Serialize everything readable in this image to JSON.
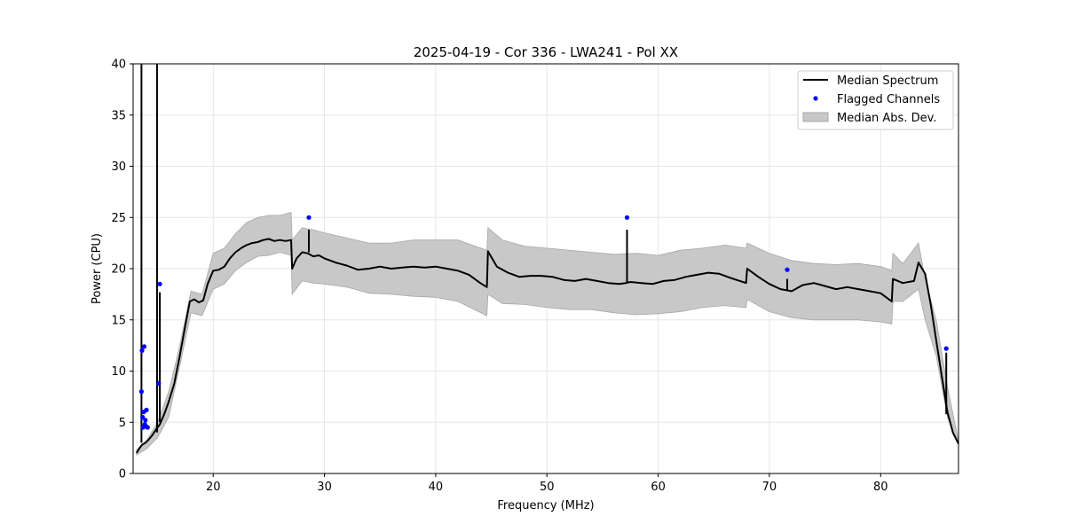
{
  "chart_data": {
    "type": "line",
    "title": "2025-04-19 - Cor 336 - LWA241 - Pol XX",
    "xlabel": "Frequency (MHz)",
    "ylabel": "Power (CPU)",
    "xlim": [
      12.8,
      87.0
    ],
    "ylim": [
      0,
      40
    ],
    "xticks": [
      20,
      30,
      40,
      50,
      60,
      70,
      80
    ],
    "yticks": [
      0,
      5,
      10,
      15,
      20,
      25,
      30,
      35,
      40
    ],
    "grid": true,
    "legend_position": "top-right",
    "legend": [
      {
        "label": "Median Spectrum",
        "kind": "line",
        "color": "#000000"
      },
      {
        "label": "Flagged Channels",
        "kind": "marker",
        "color": "#0000ff"
      },
      {
        "label": "Median Abs. Dev.",
        "kind": "band",
        "color": "#c8c8c8"
      }
    ],
    "series": [
      {
        "name": "Median Spectrum",
        "color": "#000000",
        "x": [
          13.1,
          13.4,
          13.6,
          13.9,
          14.2,
          14.5,
          14.8,
          15.2,
          15.6,
          16.0,
          16.5,
          17.0,
          17.5,
          17.9,
          18.3,
          18.7,
          19.1,
          19.5,
          20.0,
          20.5,
          21.0,
          21.5,
          22.0,
          22.5,
          23.0,
          23.5,
          24.0,
          24.5,
          25.0,
          25.5,
          26.0,
          26.5,
          27.0,
          27.1,
          27.5,
          28.0,
          28.5,
          29.0,
          29.5,
          30.0,
          31.0,
          32.0,
          33.0,
          34.0,
          35.0,
          36.0,
          37.0,
          38.0,
          39.0,
          40.0,
          41.0,
          42.0,
          43.0,
          44.0,
          44.6,
          44.7,
          45.5,
          46.5,
          47.5,
          48.5,
          49.5,
          50.5,
          51.5,
          52.5,
          53.5,
          54.5,
          55.5,
          56.5,
          57.1,
          57.5,
          58.5,
          59.5,
          60.5,
          61.5,
          62.5,
          63.5,
          64.5,
          65.5,
          66.5,
          67.9,
          68.0,
          69.0,
          70.0,
          71.0,
          72.0,
          73.0,
          74.0,
          75.0,
          76.0,
          77.0,
          78.0,
          79.0,
          80.0,
          81.0,
          81.1,
          82.0,
          83.0,
          83.4,
          84.0,
          84.5,
          85.0,
          85.5,
          86.0,
          86.5,
          87.0
        ],
        "values": [
          2.0,
          2.5,
          2.8,
          3.0,
          3.3,
          3.7,
          4.2,
          4.8,
          5.8,
          7.0,
          8.8,
          11.5,
          14.5,
          16.8,
          17.0,
          16.7,
          16.9,
          18.5,
          19.8,
          19.9,
          20.2,
          21.0,
          21.6,
          22.0,
          22.3,
          22.5,
          22.6,
          22.8,
          22.9,
          22.7,
          22.8,
          22.7,
          22.8,
          20.0,
          21.0,
          21.6,
          21.5,
          21.2,
          21.3,
          21.0,
          20.6,
          20.3,
          19.9,
          20.0,
          20.2,
          20.0,
          20.1,
          20.2,
          20.1,
          20.2,
          20.0,
          19.8,
          19.4,
          18.6,
          18.2,
          21.7,
          20.2,
          19.6,
          19.2,
          19.3,
          19.3,
          19.2,
          18.9,
          18.8,
          19.0,
          18.8,
          18.6,
          18.5,
          18.6,
          18.7,
          18.6,
          18.5,
          18.8,
          18.9,
          19.2,
          19.4,
          19.6,
          19.5,
          19.1,
          18.6,
          20.0,
          19.2,
          18.5,
          18.0,
          17.8,
          18.4,
          18.6,
          18.3,
          18.0,
          18.2,
          18.0,
          17.8,
          17.6,
          16.8,
          19.0,
          18.6,
          18.8,
          20.6,
          19.5,
          16.5,
          13.0,
          9.5,
          6.0,
          4.0,
          2.9
        ]
      },
      {
        "name": "Median Abs. Dev.",
        "color": "#c8c8c8",
        "x": [
          13.1,
          14.0,
          15.0,
          16.0,
          17.0,
          18.0,
          19.0,
          20.0,
          21.0,
          22.0,
          23.0,
          24.0,
          25.0,
          26.0,
          27.0,
          27.1,
          28.0,
          29.0,
          30.0,
          32.0,
          34.0,
          36.0,
          38.0,
          40.0,
          42.0,
          44.6,
          44.7,
          46.0,
          48.0,
          50.0,
          52.0,
          54.0,
          56.0,
          58.0,
          60.0,
          62.0,
          64.0,
          66.0,
          67.9,
          68.0,
          70.0,
          72.0,
          74.0,
          76.0,
          78.0,
          80.0,
          81.0,
          81.1,
          82.0,
          83.4,
          84.0,
          85.0,
          86.0,
          87.0
        ],
        "lower": [
          1.8,
          2.4,
          3.5,
          5.5,
          10.5,
          15.7,
          15.4,
          18.0,
          18.5,
          19.8,
          20.6,
          21.2,
          21.3,
          21.6,
          21.3,
          17.5,
          18.8,
          18.6,
          18.5,
          18.2,
          17.6,
          17.5,
          17.3,
          17.2,
          16.8,
          15.4,
          17.5,
          16.6,
          16.5,
          16.2,
          16.0,
          16.0,
          15.7,
          15.5,
          15.6,
          15.8,
          16.2,
          16.4,
          16.2,
          17.0,
          15.8,
          15.2,
          15.0,
          15.0,
          15.0,
          14.8,
          14.6,
          16.8,
          16.8,
          18.0,
          15.0,
          11.5,
          5.5,
          2.8
        ],
        "upper": [
          2.3,
          3.2,
          5.0,
          8.0,
          12.5,
          17.8,
          17.5,
          21.5,
          22.0,
          23.4,
          24.5,
          25.0,
          25.2,
          25.2,
          25.5,
          22.8,
          24.0,
          23.8,
          23.5,
          23.0,
          22.5,
          22.5,
          22.8,
          22.8,
          22.8,
          21.8,
          24.0,
          22.8,
          22.2,
          22.0,
          21.8,
          21.6,
          21.4,
          21.5,
          21.3,
          21.8,
          22.0,
          22.3,
          22.0,
          22.5,
          21.5,
          20.8,
          20.5,
          20.4,
          20.5,
          20.2,
          19.8,
          21.5,
          20.5,
          22.5,
          19.0,
          15.0,
          8.5,
          3.2
        ]
      },
      {
        "name": "Flagged Channels",
        "color": "#0000ff",
        "x": [
          13.55,
          13.6,
          13.65,
          13.7,
          13.75,
          13.8,
          13.85,
          13.9,
          13.95,
          14.0,
          14.1,
          15.1,
          15.2,
          28.6,
          57.2,
          71.6,
          85.9
        ],
        "values": [
          8.0,
          12.0,
          5.5,
          4.5,
          6.0,
          12.4,
          4.8,
          5.2,
          4.6,
          6.2,
          4.5,
          8.8,
          18.5,
          25.0,
          25.0,
          19.9,
          12.2
        ]
      }
    ],
    "spikes": [
      {
        "x": 13.55,
        "from": 3.0,
        "to": 40.0
      },
      {
        "x": 14.95,
        "from": 4.0,
        "to": 40.0
      },
      {
        "x": 15.2,
        "from": 5.0,
        "to": 17.7
      },
      {
        "x": 28.6,
        "from": 21.6,
        "to": 23.8
      },
      {
        "x": 57.2,
        "from": 18.7,
        "to": 23.8
      },
      {
        "x": 71.6,
        "from": 17.9,
        "to": 19.0
      },
      {
        "x": 85.9,
        "from": 5.8,
        "to": 11.8
      }
    ]
  }
}
